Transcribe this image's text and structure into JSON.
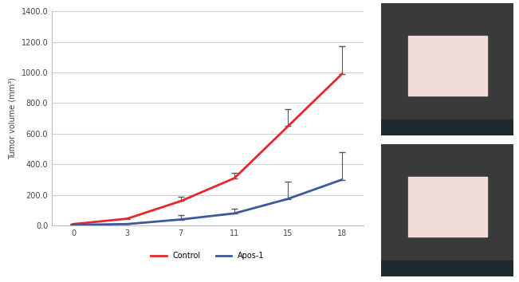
{
  "chart_data": {
    "type": "line",
    "y_label": "Tumor volume (mm³)",
    "categories": [
      "0",
      "3",
      "7",
      "11",
      "15",
      "18"
    ],
    "series": [
      {
        "name": "Control",
        "color": "#e8262a",
        "values": [
          10,
          45,
          160,
          310,
          650,
          990
        ],
        "errors": [
          0,
          5,
          30,
          35,
          110,
          180
        ]
      },
      {
        "name": "Apos-1",
        "color": "#3a5a9c",
        "values": [
          5,
          10,
          40,
          80,
          175,
          300
        ],
        "errors": [
          0,
          3,
          30,
          30,
          110,
          180
        ]
      }
    ],
    "ylim": [
      0,
      1400
    ],
    "yticks": [
      {
        "value": 0,
        "label": "0.0"
      },
      {
        "value": 200,
        "label": "200.0"
      },
      {
        "value": 400,
        "label": "400.0"
      },
      {
        "value": 600,
        "label": "600.0"
      },
      {
        "value": 800,
        "label": "800.0"
      },
      {
        "value": 1000,
        "label": "1000.0"
      },
      {
        "value": 1200,
        "label": "1200.0"
      },
      {
        "value": 1400,
        "label": "1400.0"
      }
    ],
    "grid": true,
    "legend": "upper center"
  }
}
